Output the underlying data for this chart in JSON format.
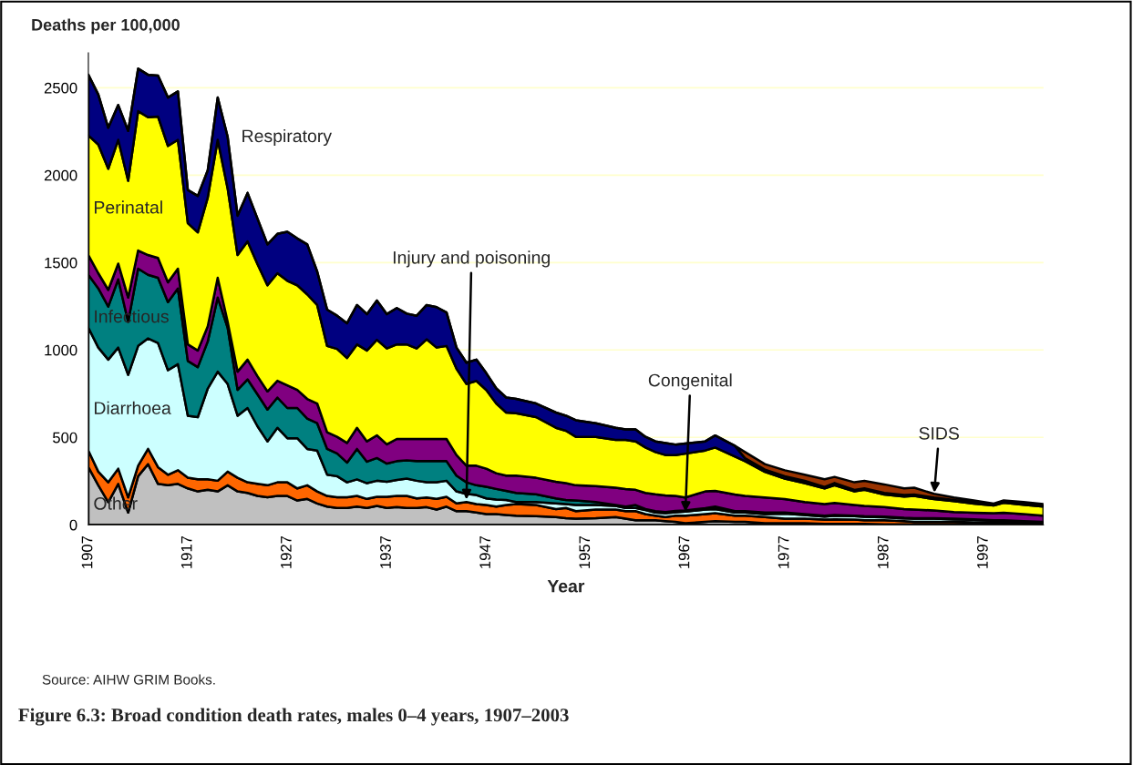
{
  "chart_data": {
    "type": "area",
    "stacked": true,
    "title": "Figure 6.3: Broad condition death rates, males 0–4 years, 1907–2003",
    "ylabel": "Deaths per 100,000",
    "xlabel": "Year",
    "x": [
      1907,
      1908,
      1909,
      1910,
      1911,
      1912,
      1913,
      1914,
      1915,
      1916,
      1917,
      1918,
      1919,
      1920,
      1921,
      1922,
      1923,
      1924,
      1925,
      1926,
      1927,
      1928,
      1929,
      1930,
      1931,
      1932,
      1933,
      1934,
      1935,
      1936,
      1937,
      1938,
      1939,
      1940,
      1941,
      1942,
      1943,
      1944,
      1945,
      1946,
      1947,
      1948,
      1949,
      1950,
      1952,
      1954,
      1955,
      1956,
      1958,
      1960,
      1961,
      1962,
      1963,
      1964,
      1965,
      1966,
      1967,
      1969,
      1970,
      1972,
      1973,
      1975,
      1977,
      1979,
      1981,
      1982,
      1984,
      1985,
      1987,
      1989,
      1990,
      1992,
      1994,
      1996,
      1998,
      1999,
      2001,
      2003
    ],
    "series": [
      {
        "name": "Other",
        "color": "#c0c0c0",
        "values": [
          330,
          226,
          130,
          234,
          70,
          278,
          347,
          234,
          226,
          234,
          208,
          191,
          200,
          191,
          226,
          191,
          182,
          165,
          157,
          165,
          165,
          139,
          148,
          122,
          104,
          96,
          96,
          104,
          96,
          108,
          96,
          101,
          96,
          96,
          101,
          87,
          104,
          78,
          78,
          70,
          61,
          61,
          56,
          52,
          49,
          44,
          38,
          35,
          38,
          44,
          35,
          26,
          26,
          26,
          21,
          17,
          9,
          17,
          21,
          17,
          17,
          9,
          9,
          9,
          5,
          5,
          5,
          5,
          3,
          3,
          3,
          3,
          2,
          2,
          2,
          0,
          0,
          0
        ]
      },
      {
        "color": "#ff6600",
        "values": [
          95,
          78,
          113,
          87,
          87,
          60,
          87,
          96,
          60,
          78,
          61,
          69,
          60,
          61,
          78,
          78,
          61,
          69,
          69,
          78,
          78,
          69,
          78,
          69,
          61,
          61,
          61,
          61,
          52,
          52,
          64,
          64,
          69,
          55,
          55,
          61,
          56,
          44,
          52,
          48,
          52,
          43,
          57,
          66,
          64,
          46,
          58,
          43,
          49,
          43,
          43,
          52,
          35,
          26,
          23,
          35,
          43,
          44,
          45,
          35,
          35,
          35,
          26,
          26,
          25,
          26,
          25,
          21,
          23,
          18,
          14,
          14,
          15,
          12,
          8,
          10,
          7,
          3
        ]
      },
      {
        "name": "Diarrhoea",
        "color": "#ccffff",
        "values": [
          702,
          710,
          702,
          693,
          701,
          685,
          632,
          710,
          598,
          607,
          355,
          356,
          520,
          624,
          502,
          355,
          425,
          330,
          251,
          312,
          252,
          287,
          208,
          234,
          122,
          121,
          86,
          95,
          90,
          92,
          86,
          92,
          99,
          101,
          87,
          95,
          92,
          69,
          47,
          52,
          38,
          40,
          29,
          12,
          17,
          32,
          22,
          35,
          26,
          21,
          18,
          18,
          23,
          18,
          22,
          20,
          23,
          26,
          24,
          18,
          18,
          17,
          29,
          21,
          17,
          21,
          19,
          19,
          17,
          16,
          18,
          18,
          14,
          14,
          13,
          13,
          10,
          11
        ]
      },
      {
        "name": "Infectious",
        "color": "#008080",
        "values": [
          303,
          338,
          303,
          390,
          304,
          442,
          364,
          373,
          390,
          433,
          313,
          286,
          269,
          424,
          321,
          148,
          164,
          182,
          182,
          173,
          173,
          173,
          173,
          156,
          147,
          130,
          113,
          174,
          123,
          130,
          104,
          107,
          104,
          112,
          121,
          121,
          112,
          90,
          66,
          56,
          66,
          61,
          52,
          52,
          44,
          29,
          24,
          26,
          17,
          5,
          8,
          17,
          6,
          8,
          7,
          8,
          7,
          8,
          14,
          8,
          8,
          9,
          6,
          5,
          5,
          4,
          3,
          4,
          4,
          3,
          3,
          3,
          4,
          3,
          3,
          3,
          4,
          3
        ]
      },
      {
        "color": "#800080",
        "values": [
          113,
          87,
          96,
          90,
          138,
          104,
          113,
          113,
          113,
          113,
          95,
          95,
          87,
          113,
          35,
          104,
          113,
          104,
          104,
          96,
          130,
          104,
          113,
          113,
          95,
          95,
          112,
          121,
          116,
          130,
          110,
          127,
          123,
          127,
          127,
          127,
          127,
          118,
          95,
          112,
          104,
          90,
          87,
          99,
          95,
          95,
          96,
          87,
          91,
          99,
          101,
          87,
          92,
          96,
          95,
          85,
          74,
          96,
          90,
          95,
          87,
          86,
          77,
          69,
          66,
          69,
          61,
          59,
          54,
          50,
          49,
          44,
          38,
          38,
          40,
          43,
          40,
          35
        ]
      },
      {
        "name": "Perinatal",
        "color": "#ffff00",
        "values": [
          685,
          736,
          693,
          708,
          668,
          797,
          788,
          809,
          780,
          737,
          693,
          676,
          736,
          789,
          762,
          667,
          676,
          641,
          607,
          615,
          598,
          598,
          598,
          563,
          494,
          503,
          486,
          477,
          520,
          546,
          549,
          541,
          541,
          518,
          570,
          523,
          532,
          494,
          468,
          485,
          450,
          399,
          361,
          357,
          347,
          309,
          300,
          277,
          282,
          274,
          281,
          277,
          260,
          242,
          231,
          234,
          251,
          234,
          248,
          217,
          199,
          147,
          117,
          108,
          90,
          101,
          78,
          92,
          72,
          71,
          78,
          65,
          62,
          52,
          45,
          57,
          53,
          52
        ]
      },
      {
        "name": "Respiratory",
        "color": "#000080",
        "values": [
          346,
          286,
          234,
          199,
          285,
          243,
          243,
          234,
          277,
          277,
          190,
          208,
          156,
          242,
          295,
          225,
          277,
          260,
          234,
          225,
          280,
          268,
          286,
          191,
          208,
          190,
          199,
          225,
          208,
          225,
          196,
          208,
          176,
          187,
          196,
          231,
          191,
          121,
          121,
          122,
          96,
          86,
          86,
          82,
          78,
          87,
          86,
          95,
          78,
          69,
          60,
          69,
          61,
          61,
          69,
          60,
          58,
          52,
          69,
          61,
          17,
          13,
          14,
          13,
          9,
          13,
          8,
          8,
          9,
          9,
          8,
          9,
          7,
          7,
          3,
          6,
          7,
          7
        ]
      },
      {
        "color": "#993300",
        "values": [
          0,
          0,
          0,
          0,
          0,
          0,
          0,
          0,
          0,
          0,
          0,
          0,
          0,
          0,
          0,
          0,
          0,
          0,
          0,
          0,
          0,
          0,
          0,
          0,
          0,
          0,
          0,
          0,
          0,
          0,
          0,
          0,
          0,
          0,
          0,
          0,
          0,
          0,
          0,
          0,
          0,
          0,
          0,
          0,
          0,
          0,
          0,
          0,
          0,
          0,
          0,
          0,
          0,
          0,
          0,
          0,
          0,
          0,
          0,
          0,
          35,
          31,
          34,
          35,
          43,
          35,
          44,
          43,
          49,
          38,
          39,
          21,
          14,
          11,
          7,
          7,
          9,
          7
        ]
      }
    ],
    "annotations": [
      {
        "text": "Injury and poisoning",
        "x": 1945,
        "y": 130
      },
      {
        "text": "Congenital",
        "x": 1967,
        "y": 60
      },
      {
        "text": "SIDS",
        "x": 1992,
        "y": 170
      },
      "Source: AIHW GRIM Books."
    ],
    "xlim": [
      1907,
      2003
    ],
    "ylim": [
      0,
      2700
    ],
    "xticks": [
      1907,
      1917,
      1927,
      1937,
      1947,
      1957,
      1967,
      1977,
      1987,
      1997
    ],
    "yticks": [
      0,
      500,
      1000,
      1500,
      2000,
      2500
    ],
    "grid": "y",
    "legend": false
  }
}
